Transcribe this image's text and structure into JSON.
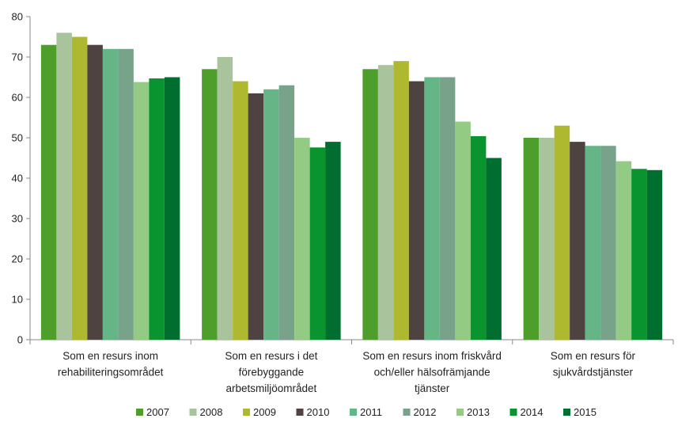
{
  "chart_data": {
    "type": "bar",
    "categories": [
      [
        "Som en resurs inom",
        "rehabiliteringsområdet"
      ],
      [
        "Som en resurs i det",
        "förebyggande",
        "arbetsmiljöområdet"
      ],
      [
        "Som en resurs inom friskvård",
        "och/eller hälsofrämjande",
        "tjänster"
      ],
      [
        "Som en resurs för",
        "sjukvårdstjänster"
      ]
    ],
    "series": [
      {
        "name": "2007",
        "color": "#4e9e2b",
        "values": [
          73,
          67,
          67,
          50
        ]
      },
      {
        "name": "2008",
        "color": "#a9c39c",
        "values": [
          76,
          70,
          68,
          50
        ]
      },
      {
        "name": "2009",
        "color": "#aeb92f",
        "values": [
          75,
          64,
          69,
          53
        ]
      },
      {
        "name": "2010",
        "color": "#4e4340",
        "values": [
          73,
          61,
          64,
          49
        ]
      },
      {
        "name": "2011",
        "color": "#66b586",
        "values": [
          72,
          62,
          65,
          48
        ]
      },
      {
        "name": "2012",
        "color": "#78a38a",
        "values": [
          72,
          63,
          65,
          48
        ]
      },
      {
        "name": "2013",
        "color": "#93cb85",
        "values": [
          63.8,
          50,
          54,
          44.2
        ]
      },
      {
        "name": "2014",
        "color": "#0a942f",
        "values": [
          64.7,
          47.6,
          50.4,
          42.3
        ]
      },
      {
        "name": "2015",
        "color": "#006e2e",
        "values": [
          65,
          49,
          45,
          42
        ]
      }
    ],
    "y_ticks": [
      "0",
      "10",
      "20",
      "30",
      "40",
      "50",
      "60",
      "70",
      "80"
    ],
    "ylim": [
      0,
      80
    ],
    "grid": false,
    "legend_position": "bottom"
  }
}
